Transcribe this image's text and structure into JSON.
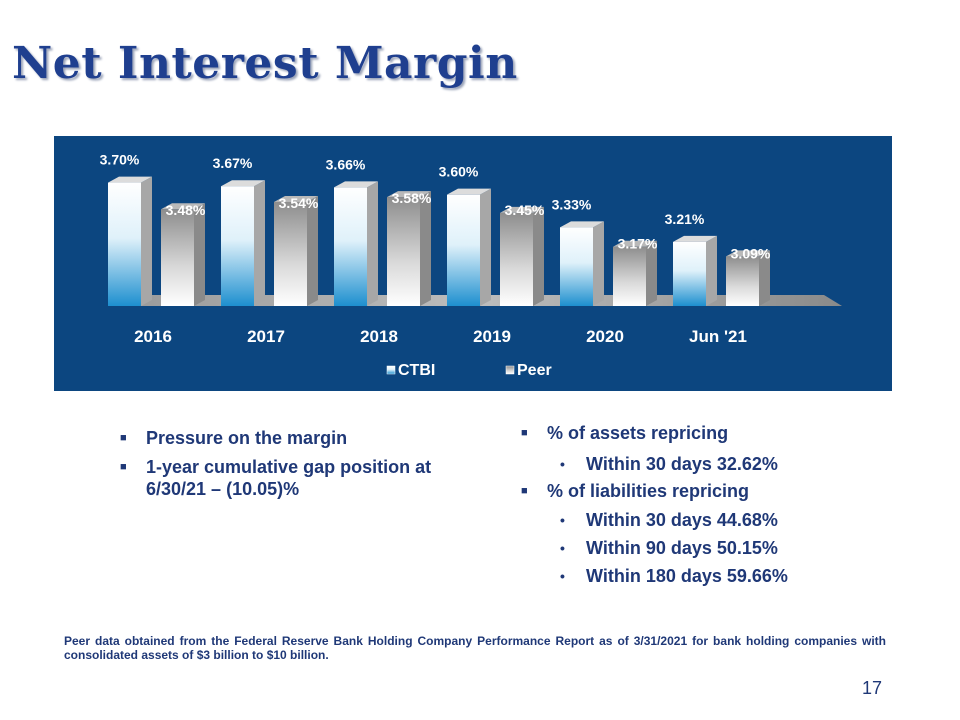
{
  "slide": {
    "title": "Net Interest Margin",
    "page_number": "17",
    "footnote": "Peer data obtained from the Federal Reserve Bank Holding Company Performance Report as of 3/31/2021 for bank holding companies with consolidated assets of $3 billion to $10 billion."
  },
  "left_bullets": [
    "Pressure on the margin",
    "1-year cumulative gap position at 6/30/21 – (10.05)%"
  ],
  "right_bullets": {
    "assets_heading": "% of assets repricing",
    "assets_items": [
      "Within 30 days 32.62%"
    ],
    "liabilities_heading": "% of liabilities  repricing",
    "liabilities_items": [
      "Within 30 days 44.68%",
      "Within 90 days 50.15%",
      "Within 180 days 59.66%"
    ]
  },
  "chart_data": {
    "type": "bar",
    "categories": [
      "2016",
      "2017",
      "2018",
      "2019",
      "2020",
      "Jun '21"
    ],
    "series": [
      {
        "name": "CTBI",
        "values": [
          3.7,
          3.67,
          3.66,
          3.6,
          3.33,
          3.21
        ],
        "labels": [
          "3.70%",
          "3.67%",
          "3.66%",
          "3.60%",
          "3.33%",
          "3.21%"
        ]
      },
      {
        "name": "Peer",
        "values": [
          3.48,
          3.54,
          3.58,
          3.45,
          3.17,
          3.09
        ],
        "labels": [
          "3.48%",
          "3.54%",
          "3.58%",
          "3.45%",
          "3.17%",
          "3.09%"
        ]
      }
    ],
    "legend_position": "bottom",
    "grid": false,
    "colors": {
      "background": "#0c4680",
      "ctbi": "#2196d3",
      "peer": "#ffffff",
      "text": "#ffffff"
    }
  }
}
